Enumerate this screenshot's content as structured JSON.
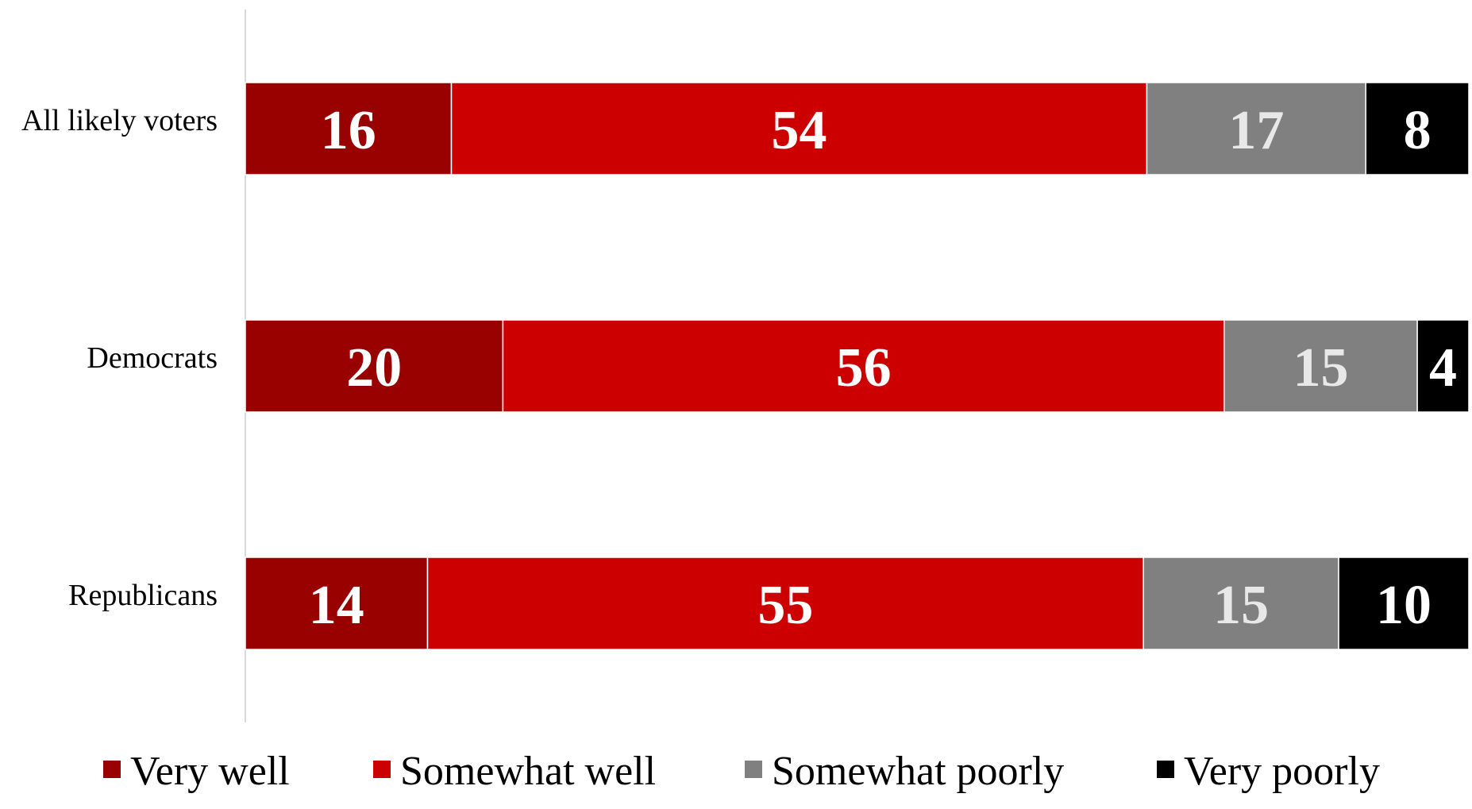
{
  "chart_data": {
    "type": "bar",
    "orientation": "horizontal",
    "stacked": true,
    "categories": [
      "All likely voters",
      "Democrats",
      "Republicans"
    ],
    "series": [
      {
        "name": "Very well",
        "values": [
          16,
          20,
          14
        ],
        "color": "#990000"
      },
      {
        "name": "Somewhat well",
        "values": [
          54,
          56,
          55
        ],
        "color": "#cc0000"
      },
      {
        "name": "Somewhat poorly",
        "values": [
          17,
          15,
          15
        ],
        "color": "#808080"
      },
      {
        "name": "Very poorly",
        "values": [
          8,
          4,
          10
        ],
        "color": "#000000"
      }
    ],
    "label_colors": [
      "#ffffff",
      "#ffffff",
      "#e8e8e8",
      "#ffffff"
    ],
    "xlim": [
      0,
      100
    ],
    "title": "",
    "xlabel": "",
    "ylabel": "",
    "grid": false,
    "legend_position": "bottom"
  }
}
